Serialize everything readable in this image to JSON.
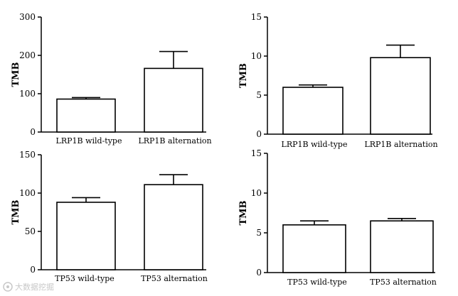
{
  "chart_data": [
    {
      "type": "bar",
      "categories": [
        "LRP1B wild-type",
        "LRP1B alternation"
      ],
      "values": [
        86,
        166
      ],
      "errors": [
        4,
        44
      ],
      "ylabel": "TMB",
      "ylim": [
        0,
        300
      ],
      "yticks": [
        "0",
        "100",
        "200",
        "300"
      ]
    },
    {
      "type": "bar",
      "categories": [
        "LRP1B wild-type",
        "LRP1B alternation"
      ],
      "values": [
        6.0,
        9.8
      ],
      "errors": [
        0.3,
        1.6
      ],
      "ylabel": "TMB",
      "ylim": [
        0,
        15
      ],
      "yticks": [
        "0",
        "5",
        "10",
        "15"
      ]
    },
    {
      "type": "bar",
      "categories": [
        "TP53 wild-type",
        "TP53 alternation"
      ],
      "values": [
        88,
        111
      ],
      "errors": [
        6,
        13
      ],
      "ylabel": "TMB",
      "ylim": [
        0,
        150
      ],
      "yticks": [
        "0",
        "50",
        "100",
        "150"
      ]
    },
    {
      "type": "bar",
      "categories": [
        "TP53 wild-type",
        "TP53 alternation"
      ],
      "values": [
        6.0,
        6.5
      ],
      "errors": [
        0.5,
        0.3
      ],
      "ylabel": "TMB",
      "ylim": [
        0,
        15
      ],
      "yticks": [
        "0",
        "5",
        "10",
        "15"
      ]
    }
  ],
  "watermark": {
    "text": "大数据挖掘",
    "icon": "weibo-icon"
  }
}
